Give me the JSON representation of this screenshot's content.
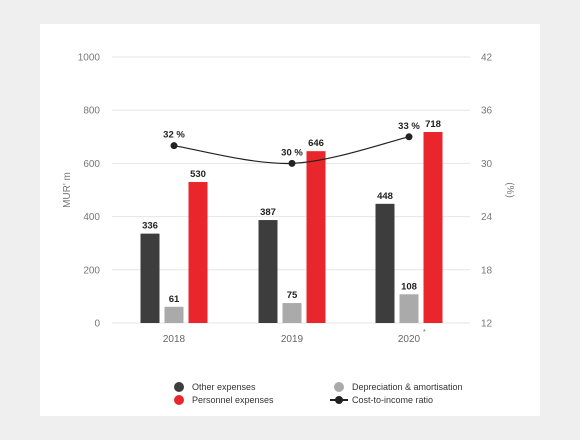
{
  "chart_data": {
    "type": "bar",
    "categories": [
      "2018",
      "2019",
      "2020"
    ],
    "category_marks": [
      "",
      "",
      "*"
    ],
    "ylabel": "MUR' m",
    "y2label": "(%)",
    "ylim": [
      0,
      1000
    ],
    "y2lim": [
      12,
      42
    ],
    "yticks": [
      "0",
      "200",
      "400",
      "600",
      "800",
      "1000"
    ],
    "y2ticks": [
      "12",
      "18",
      "24",
      "30",
      "36",
      "42"
    ],
    "grid": true,
    "legend_position": "bottom",
    "series": [
      {
        "name": "Other expenses",
        "type": "bar",
        "color": "#3d3d3d",
        "values": [
          336,
          387,
          448
        ],
        "labels": [
          "336",
          "387",
          "448"
        ]
      },
      {
        "name": "Depreciation & amortisation",
        "type": "bar",
        "color": "#aaaaaa",
        "values": [
          61,
          75,
          108
        ],
        "labels": [
          "61",
          "75",
          "108"
        ]
      },
      {
        "name": "Personnel expenses",
        "type": "bar",
        "color": "#e8262b",
        "values": [
          530,
          646,
          718
        ],
        "labels": [
          "530",
          "646",
          "718"
        ]
      },
      {
        "name": "Cost-to-income ratio",
        "type": "line",
        "axis": "right",
        "color": "#222222",
        "values": [
          32,
          30,
          33
        ],
        "labels": [
          "32 %",
          "30 %",
          "33 %"
        ]
      }
    ]
  }
}
